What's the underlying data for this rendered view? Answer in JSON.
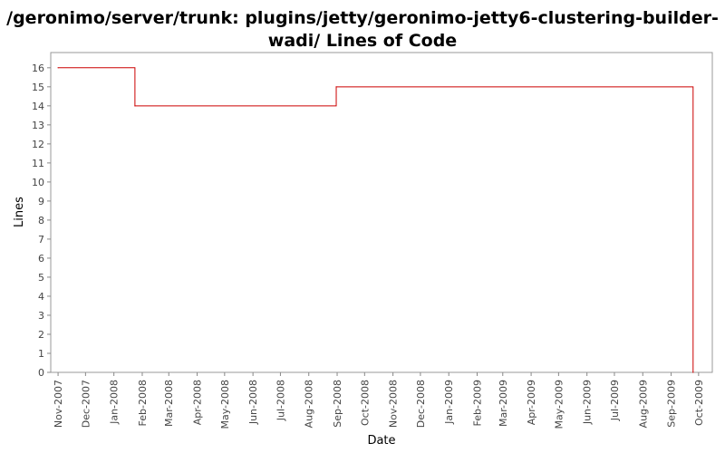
{
  "chart_data": {
    "type": "line",
    "step": true,
    "title_lines": [
      "/geronimo/server/trunk: plugins/jetty/geronimo-jetty6-clustering-builder-",
      "wadi/ Lines of Code"
    ],
    "xlabel": "Date",
    "ylabel": "Lines",
    "ylim": [
      0,
      16.8
    ],
    "yticks": [
      0,
      1,
      2,
      3,
      4,
      5,
      6,
      7,
      8,
      9,
      10,
      11,
      12,
      13,
      14,
      15,
      16
    ],
    "xlim": [
      "2007-10-24",
      "2009-10-16"
    ],
    "xticks": [
      {
        "date": "2007-11-01",
        "label": "Nov-2007"
      },
      {
        "date": "2007-12-01",
        "label": "Dec-2007"
      },
      {
        "date": "2008-01-01",
        "label": "Jan-2008"
      },
      {
        "date": "2008-02-01",
        "label": "Feb-2008"
      },
      {
        "date": "2008-03-01",
        "label": "Mar-2008"
      },
      {
        "date": "2008-04-01",
        "label": "Apr-2008"
      },
      {
        "date": "2008-05-01",
        "label": "May-2008"
      },
      {
        "date": "2008-06-01",
        "label": "Jun-2008"
      },
      {
        "date": "2008-07-01",
        "label": "Jul-2008"
      },
      {
        "date": "2008-08-01",
        "label": "Aug-2008"
      },
      {
        "date": "2008-09-01",
        "label": "Sep-2008"
      },
      {
        "date": "2008-10-01",
        "label": "Oct-2008"
      },
      {
        "date": "2008-11-01",
        "label": "Nov-2008"
      },
      {
        "date": "2008-12-01",
        "label": "Dec-2008"
      },
      {
        "date": "2009-01-01",
        "label": "Jan-2009"
      },
      {
        "date": "2009-02-01",
        "label": "Feb-2009"
      },
      {
        "date": "2009-03-01",
        "label": "Mar-2009"
      },
      {
        "date": "2009-04-01",
        "label": "Apr-2009"
      },
      {
        "date": "2009-05-01",
        "label": "May-2009"
      },
      {
        "date": "2009-06-01",
        "label": "Jun-2009"
      },
      {
        "date": "2009-07-01",
        "label": "Jul-2009"
      },
      {
        "date": "2009-08-01",
        "label": "Aug-2009"
      },
      {
        "date": "2009-09-01",
        "label": "Sep-2009"
      },
      {
        "date": "2009-10-01",
        "label": "Oct-2009"
      }
    ],
    "series": [
      {
        "color": "#cc0000",
        "points": [
          {
            "x": "2007-11-01",
            "y": 16
          },
          {
            "x": "2008-01-24",
            "y": 14
          },
          {
            "x": "2008-08-31",
            "y": 15
          },
          {
            "x": "2009-09-25",
            "y": 0
          }
        ]
      }
    ],
    "grid": false,
    "legend": "none"
  }
}
